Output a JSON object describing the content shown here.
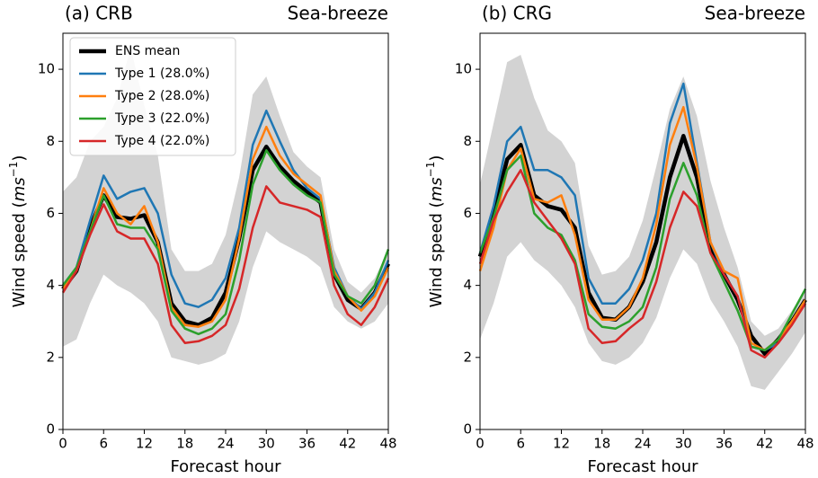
{
  "chart_data": [
    {
      "type": "line",
      "title": "(a) CRB",
      "annotation": "Sea-breeze",
      "xlabel": "Forecast hour",
      "ylabel_parts": [
        "Wind speed (",
        "ms",
        "−1",
        ")"
      ],
      "x": [
        0,
        2,
        4,
        6,
        8,
        10,
        12,
        14,
        16,
        18,
        20,
        22,
        24,
        26,
        28,
        30,
        32,
        34,
        36,
        38,
        40,
        42,
        44,
        46,
        48
      ],
      "xlim": [
        0,
        48
      ],
      "xticks": [
        0,
        6,
        12,
        18,
        24,
        30,
        36,
        42,
        48
      ],
      "ylim": [
        0,
        11
      ],
      "yticks": [
        0,
        2,
        4,
        6,
        8,
        10
      ],
      "legend": "upper left",
      "band": {
        "color": "#d3d3d3",
        "lower": [
          2.3,
          2.5,
          3.5,
          4.3,
          4.0,
          3.8,
          3.5,
          3.0,
          2.0,
          1.9,
          1.8,
          1.9,
          2.1,
          3.0,
          4.5,
          5.5,
          5.2,
          5.0,
          4.8,
          4.5,
          3.4,
          3.0,
          2.8,
          3.0,
          3.5
        ],
        "upper": [
          6.6,
          7.0,
          8.0,
          8.4,
          9.2,
          10.6,
          9.0,
          7.6,
          5.0,
          4.4,
          4.4,
          4.6,
          5.4,
          7.0,
          9.3,
          9.8,
          8.7,
          7.7,
          7.3,
          7.0,
          5.0,
          4.1,
          3.8,
          4.2,
          5.0
        ]
      },
      "series": [
        {
          "name": "ENS mean",
          "color": "#000000",
          "values": [
            3.9,
            4.4,
            5.6,
            6.5,
            5.9,
            5.85,
            5.95,
            5.2,
            3.5,
            3.0,
            2.9,
            3.1,
            3.8,
            5.3,
            7.2,
            7.85,
            7.3,
            6.9,
            6.6,
            6.3,
            4.3,
            3.6,
            3.35,
            3.8,
            4.6
          ]
        },
        {
          "name": "Type 1 (28.0%)",
          "color": "#1f77b4",
          "values": [
            4.0,
            4.5,
            5.8,
            7.05,
            6.4,
            6.6,
            6.7,
            6.0,
            4.3,
            3.5,
            3.4,
            3.6,
            4.2,
            5.6,
            7.9,
            8.85,
            8.0,
            7.2,
            6.7,
            6.4,
            4.5,
            3.7,
            3.35,
            3.8,
            4.7
          ]
        },
        {
          "name": "Type 2 (28.0%)",
          "color": "#ff7f0e",
          "values": [
            3.9,
            4.4,
            5.5,
            6.7,
            6.0,
            5.7,
            6.2,
            5.2,
            3.4,
            2.9,
            2.85,
            3.0,
            3.6,
            5.3,
            7.5,
            8.4,
            7.6,
            7.1,
            6.8,
            6.5,
            4.4,
            3.7,
            3.3,
            3.7,
            4.5
          ]
        },
        {
          "name": "Type 3 (22.0%)",
          "color": "#2ca02c",
          "values": [
            4.0,
            4.5,
            5.5,
            6.5,
            5.7,
            5.6,
            5.6,
            5.0,
            3.3,
            2.8,
            2.65,
            2.8,
            3.2,
            4.7,
            6.8,
            7.75,
            7.2,
            6.8,
            6.5,
            6.3,
            4.3,
            3.7,
            3.5,
            4.0,
            5.0
          ]
        },
        {
          "name": "Type 4 (22.0%)",
          "color": "#d62728",
          "values": [
            3.8,
            4.4,
            5.4,
            6.25,
            5.5,
            5.3,
            5.3,
            4.6,
            2.9,
            2.4,
            2.45,
            2.6,
            2.9,
            3.9,
            5.6,
            6.75,
            6.3,
            6.2,
            6.1,
            5.9,
            4.0,
            3.2,
            2.9,
            3.4,
            4.2
          ]
        }
      ]
    },
    {
      "type": "line",
      "title": "(b) CRG",
      "annotation": "Sea-breeze",
      "xlabel": "Forecast hour",
      "ylabel_parts": [
        "Wind speed (",
        "ms",
        "−1",
        ")"
      ],
      "x": [
        0,
        2,
        4,
        6,
        8,
        10,
        12,
        14,
        16,
        18,
        20,
        22,
        24,
        26,
        28,
        30,
        32,
        34,
        36,
        38,
        40,
        42,
        44,
        46,
        48
      ],
      "xlim": [
        0,
        48
      ],
      "xticks": [
        0,
        6,
        12,
        18,
        24,
        30,
        36,
        42,
        48
      ],
      "ylim": [
        0,
        11
      ],
      "yticks": [
        0,
        2,
        4,
        6,
        8,
        10
      ],
      "band": {
        "color": "#d3d3d3",
        "lower": [
          2.5,
          3.5,
          4.8,
          5.2,
          4.7,
          4.4,
          4.0,
          3.4,
          2.4,
          1.9,
          1.8,
          2.0,
          2.4,
          3.1,
          4.2,
          5.0,
          4.6,
          3.6,
          3.0,
          2.3,
          1.2,
          1.1,
          1.6,
          2.1,
          2.7
        ],
        "upper": [
          6.8,
          8.5,
          10.2,
          10.4,
          9.2,
          8.3,
          8.0,
          7.4,
          5.1,
          4.3,
          4.4,
          4.8,
          5.8,
          7.3,
          8.9,
          9.8,
          8.7,
          6.9,
          5.6,
          4.5,
          3.0,
          2.6,
          2.8,
          3.3,
          3.9
        ]
      },
      "series": [
        {
          "color": "#000000",
          "values": [
            4.8,
            6.0,
            7.5,
            7.9,
            6.5,
            6.2,
            6.1,
            5.6,
            3.8,
            3.1,
            3.05,
            3.4,
            4.1,
            5.2,
            7.0,
            8.15,
            7.0,
            5.0,
            4.3,
            3.6,
            2.6,
            2.1,
            2.5,
            3.0,
            3.6
          ]
        },
        {
          "color": "#1f77b4",
          "values": [
            4.9,
            6.2,
            8.0,
            8.4,
            7.2,
            7.2,
            7.0,
            6.5,
            4.2,
            3.5,
            3.5,
            3.9,
            4.7,
            6.0,
            8.5,
            9.6,
            7.4,
            5.2,
            4.3,
            3.7,
            2.3,
            2.2,
            2.4,
            3.0,
            3.6
          ]
        },
        {
          "color": "#ff7f0e",
          "values": [
            4.4,
            5.6,
            7.2,
            7.8,
            6.4,
            6.3,
            6.5,
            5.4,
            3.6,
            3.05,
            3.05,
            3.4,
            4.2,
            5.7,
            7.9,
            8.95,
            7.3,
            5.2,
            4.4,
            4.2,
            2.4,
            2.2,
            2.5,
            3.0,
            3.6
          ]
        },
        {
          "color": "#2ca02c",
          "values": [
            4.9,
            5.9,
            7.2,
            7.6,
            6.0,
            5.6,
            5.4,
            4.7,
            3.2,
            2.85,
            2.8,
            3.0,
            3.4,
            4.5,
            6.4,
            7.4,
            6.5,
            4.9,
            4.1,
            3.3,
            2.3,
            2.2,
            2.5,
            3.2,
            3.9
          ]
        },
        {
          "color": "#d62728",
          "values": [
            4.6,
            5.8,
            6.6,
            7.2,
            6.3,
            5.8,
            5.3,
            4.6,
            2.8,
            2.4,
            2.45,
            2.8,
            3.1,
            4.1,
            5.6,
            6.6,
            6.2,
            4.9,
            4.3,
            3.7,
            2.2,
            2.0,
            2.4,
            2.9,
            3.5
          ]
        }
      ]
    }
  ]
}
